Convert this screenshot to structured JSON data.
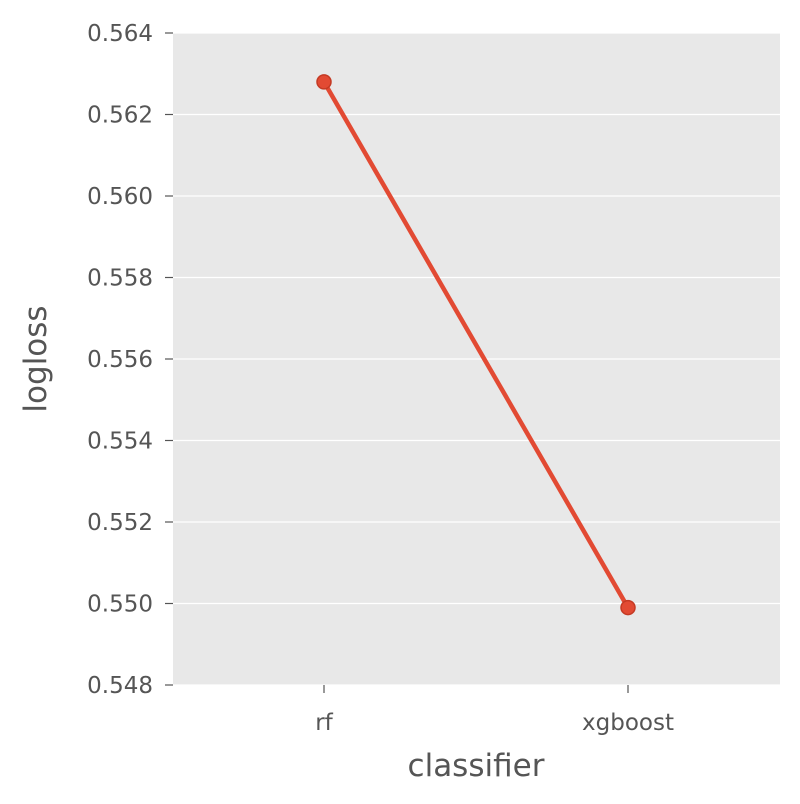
{
  "chart_data": {
    "type": "line",
    "title": "",
    "xlabel": "classifier",
    "ylabel": "logloss",
    "categories": [
      "rf",
      "xgboost"
    ],
    "series": [
      {
        "values": [
          0.5628,
          0.5499
        ]
      }
    ],
    "ylim": [
      0.548,
      0.564
    ],
    "yticks": [
      "0.548",
      "0.550",
      "0.552",
      "0.554",
      "0.556",
      "0.558",
      "0.560",
      "0.562",
      "0.564"
    ],
    "grid": true,
    "legend": "none",
    "colors": {
      "line": "#e24a33",
      "plot_background": "#e8e8e8",
      "grid": "#ffffff",
      "text": "#555555"
    }
  }
}
